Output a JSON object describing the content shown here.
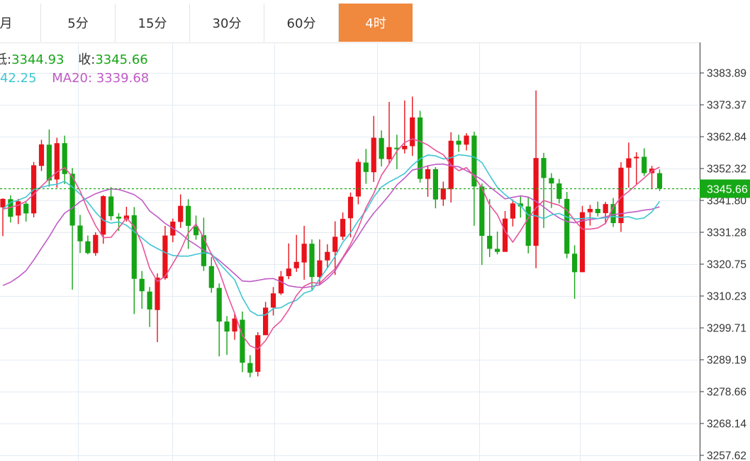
{
  "tabs": [
    {
      "label": "月",
      "active": false
    },
    {
      "label": "5分",
      "active": false
    },
    {
      "label": "15分",
      "active": false
    },
    {
      "label": "30分",
      "active": false
    },
    {
      "label": "60分",
      "active": false
    },
    {
      "label": "4时",
      "active": true
    }
  ],
  "info": {
    "low_label": "低:",
    "low_value": "3344.93",
    "close_label": "收:",
    "close_value": "3345.66",
    "ma10_value": "42.25",
    "ma20_label": "MA20:",
    "ma20_value": "3339.68"
  },
  "colors": {
    "tab_active_bg": "#f0883e",
    "up": "#e8121b",
    "down": "#15a415",
    "ma_cyan": "#3fc6d3",
    "ma_pink": "#e8559a",
    "ma_magenta": "#c05bc6",
    "last_price_tag": "#16a816"
  },
  "chart_data": {
    "type": "candlestick",
    "y_axis": {
      "position": "right",
      "ylim": [
        3257.62,
        3390
      ],
      "tick_labels": [
        "3383.89",
        "3373.37",
        "3362.84",
        "3352.32",
        "3341.80",
        "3331.28",
        "3320.75",
        "3310.23",
        "3299.71",
        "3289.19",
        "3278.66",
        "3268.14",
        "3257.62"
      ],
      "tick_values": [
        3383.89,
        3373.37,
        3362.84,
        3352.32,
        3341.8,
        3331.28,
        3320.75,
        3310.23,
        3299.71,
        3289.19,
        3278.66,
        3268.14,
        3257.62
      ]
    },
    "grid": true,
    "last_price": {
      "value": 3345.66,
      "label": "3345.66"
    },
    "candles": [
      [
        3339.5,
        3342.3,
        3342.5,
        3330.0
      ],
      [
        3342.2,
        3336.4,
        3343.5,
        3334.5
      ],
      [
        3336.8,
        3341.5,
        3342.3,
        3334.0
      ],
      [
        3340.7,
        3337.5,
        3341.3,
        3334.8
      ],
      [
        3337.5,
        3353.4,
        3354.5,
        3336.2
      ],
      [
        3353.2,
        3360.3,
        3361.8,
        3351.5
      ],
      [
        3360.2,
        3348.4,
        3365.2,
        3346.3
      ],
      [
        3348.7,
        3360.7,
        3362.5,
        3346.0
      ],
      [
        3360.7,
        3350.5,
        3363.2,
        3347.2
      ],
      [
        3350.6,
        3333.5,
        3352.5,
        3312.3
      ],
      [
        3333.5,
        3328.3,
        3337.0,
        3324.4
      ],
      [
        3328.3,
        3324.4,
        3330.2,
        3324.0
      ],
      [
        3324.4,
        3330.4,
        3331.3,
        3323.5
      ],
      [
        3330.5,
        3343.2,
        3343.5,
        3327.5
      ],
      [
        3343.1,
        3336.6,
        3346.2,
        3335.2
      ],
      [
        3336.4,
        3335.8,
        3337.6,
        3331.7
      ],
      [
        3335.6,
        3336.8,
        3339.7,
        3334.8
      ],
      [
        3336.9,
        3315.9,
        3339.6,
        3304.3
      ],
      [
        3315.9,
        3311.8,
        3318.5,
        3306.0
      ],
      [
        3311.7,
        3305.8,
        3313.2,
        3300.0
      ],
      [
        3305.6,
        3316.3,
        3317.7,
        3295.0
      ],
      [
        3316.1,
        3330.2,
        3333.4,
        3315.6
      ],
      [
        3330.2,
        3334.8,
        3335.8,
        3328.0
      ],
      [
        3334.7,
        3340.0,
        3343.8,
        3332.7
      ],
      [
        3340.0,
        3333.4,
        3342.2,
        3325.8
      ],
      [
        3333.2,
        3330.3,
        3336.8,
        3328.8
      ],
      [
        3330.3,
        3320.1,
        3336.1,
        3318.5
      ],
      [
        3320.1,
        3312.9,
        3323.1,
        3311.3
      ],
      [
        3312.9,
        3301.8,
        3314.4,
        3290.3
      ],
      [
        3301.8,
        3298.5,
        3303.6,
        3290.8
      ],
      [
        3298.5,
        3302.8,
        3304.3,
        3295.8
      ],
      [
        3302.4,
        3288.2,
        3305.1,
        3285.1
      ],
      [
        3288.1,
        3284.9,
        3290.7,
        3283.4
      ],
      [
        3285.2,
        3297.3,
        3298.3,
        3283.7
      ],
      [
        3297.3,
        3306.4,
        3308.3,
        3297.3
      ],
      [
        3306.4,
        3311.1,
        3313.2,
        3303.8
      ],
      [
        3311.1,
        3316.7,
        3318.5,
        3310.6
      ],
      [
        3316.8,
        3319.3,
        3327.6,
        3315.8
      ],
      [
        3319.4,
        3321.5,
        3330.4,
        3318.2
      ],
      [
        3321.3,
        3327.5,
        3333.4,
        3315.6
      ],
      [
        3327.5,
        3316.5,
        3328.9,
        3312.3
      ],
      [
        3316.5,
        3322.0,
        3328.9,
        3314.1
      ],
      [
        3322.0,
        3324.8,
        3327.3,
        3319.3
      ],
      [
        3324.8,
        3329.8,
        3334.9,
        3317.2
      ],
      [
        3329.8,
        3335.7,
        3337.8,
        3328.7
      ],
      [
        3335.9,
        3343.0,
        3344.4,
        3329.6
      ],
      [
        3343.1,
        3354.5,
        3355.5,
        3340.5
      ],
      [
        3354.3,
        3351.2,
        3358.8,
        3347.3
      ],
      [
        3351.1,
        3362.5,
        3369.7,
        3347.9
      ],
      [
        3362.4,
        3355.5,
        3364.9,
        3353.0
      ],
      [
        3355.4,
        3359.4,
        3374.3,
        3353.8
      ],
      [
        3359.2,
        3358.7,
        3363.5,
        3352.1
      ],
      [
        3358.7,
        3359.8,
        3374.8,
        3357.3
      ],
      [
        3359.7,
        3369.2,
        3376.1,
        3356.5
      ],
      [
        3369.2,
        3348.9,
        3371.4,
        3347.7
      ],
      [
        3348.9,
        3352.1,
        3353.4,
        3343.0
      ],
      [
        3352.1,
        3342.1,
        3352.8,
        3339.2
      ],
      [
        3342.1,
        3345.8,
        3348.0,
        3340.0
      ],
      [
        3345.5,
        3361.5,
        3364.3,
        3341.1
      ],
      [
        3361.5,
        3360.2,
        3363.5,
        3357.8
      ],
      [
        3360.2,
        3363.2,
        3364.0,
        3358.3
      ],
      [
        3363.2,
        3346.4,
        3364.5,
        3333.4
      ],
      [
        3346.4,
        3330.1,
        3347.4,
        3320.5
      ],
      [
        3330.1,
        3325.8,
        3342.2,
        3323.1
      ],
      [
        3325.8,
        3324.8,
        3331.5,
        3324.0
      ],
      [
        3324.8,
        3335.8,
        3338.3,
        3325.5
      ],
      [
        3335.8,
        3340.8,
        3342.1,
        3333.2
      ],
      [
        3340.8,
        3339.8,
        3343.3,
        3336.1
      ],
      [
        3339.8,
        3326.8,
        3343.0,
        3324.3
      ],
      [
        3326.8,
        3355.8,
        3378.1,
        3319.4
      ],
      [
        3355.8,
        3349.2,
        3357.5,
        3332.7
      ],
      [
        3349.2,
        3347.4,
        3350.8,
        3339.3
      ],
      [
        3347.4,
        3342.3,
        3348.9,
        3340.8
      ],
      [
        3342.3,
        3324.2,
        3344.6,
        3322.7
      ],
      [
        3324.2,
        3318.1,
        3327.0,
        3309.3
      ],
      [
        3318.1,
        3337.9,
        3340.0,
        3318.1
      ],
      [
        3337.9,
        3339.0,
        3340.3,
        3333.5
      ],
      [
        3339.0,
        3337.6,
        3341.4,
        3336.5
      ],
      [
        3337.6,
        3340.6,
        3341.3,
        3334.0
      ],
      [
        3340.6,
        3334.3,
        3342.6,
        3333.0
      ],
      [
        3334.3,
        3352.6,
        3354.4,
        3331.4
      ],
      [
        3352.6,
        3355.7,
        3360.9,
        3346.0
      ],
      [
        3355.7,
        3356.2,
        3357.7,
        3347.0
      ],
      [
        3356.2,
        3350.8,
        3359.0,
        3349.9
      ],
      [
        3350.8,
        3352.3,
        3353.2,
        3345.7
      ],
      [
        3350.8,
        3345.7,
        3352.0,
        3344.9
      ]
    ],
    "ma_cyan": [
      3339.0,
      3341.2,
      3341.9,
      3342.9,
      3345.4,
      3346.1,
      3346.8,
      3347.1,
      3348.1,
      3346.2,
      3343.9,
      3341.2,
      3337.9,
      3335.2,
      3334.3,
      3334.7,
      3333.6,
      3331.5,
      3329.4,
      3327.3,
      3325.9,
      3324.6,
      3323.6,
      3323.4,
      3323.4,
      3324.0,
      3324.5,
      3324.2,
      3321.1,
      3318.3,
      3315.6,
      3309.7,
      3305.3,
      3303.8,
      3304.0,
      3306.1,
      3306.4,
      3307.9,
      3308.8,
      3311.2,
      3312.0,
      3315.9,
      3319.5,
      3323.3,
      3328.0,
      3331.1,
      3335.1,
      3338.4,
      3342.9,
      3346.2,
      3347.9,
      3349.2,
      3350.7,
      3353.4,
      3355.5,
      3356.8,
      3356.5,
      3355.5,
      3355.9,
      3356.9,
      3356.6,
      3356.1,
      3354.3,
      3350.1,
      3346.1,
      3343.7,
      3341.7,
      3340.1,
      3337.0,
      3336.7,
      3335.8,
      3337.0,
      3337.5,
      3336.3,
      3335.7,
      3335.8,
      3336.1,
      3335.8,
      3336.1,
      3336.5,
      3336.2,
      3336.4,
      3335.6,
      3336.0,
      3338.0,
      3341.5
    ],
    "ma_pink": [
      3338.9,
      3339.5,
      3340.2,
      3341.5,
      3343.8,
      3346.5,
      3348.9,
      3351.2,
      3352.6,
      3349.6,
      3344.9,
      3338.7,
      3333.5,
      3329.5,
      3329.6,
      3332.7,
      3336.0,
      3333.2,
      3327.5,
      3319.4,
      3315.0,
      3316.7,
      3320.9,
      3325.3,
      3331.1,
      3334.0,
      3329.4,
      3324.0,
      3318.5,
      3311.1,
      3304.5,
      3297.2,
      3293.8,
      3292.7,
      3295.5,
      3299.7,
      3302.0,
      3305.7,
      3310.4,
      3313.5,
      3314.7,
      3314.4,
      3316.9,
      3319.2,
      3323.0,
      3327.3,
      3332.7,
      3339.4,
      3344.1,
      3350.1,
      3353.9,
      3358.1,
      3360.9,
      3362.1,
      3361.3,
      3360.1,
      3358.3,
      3356.9,
      3353.6,
      3351.6,
      3352.6,
      3349.8,
      3345.9,
      3340.3,
      3337.1,
      3331.6,
      3328.0,
      3331.8,
      3335.9,
      3339.3,
      3341.8,
      3340.9,
      3340.2,
      3338.6,
      3335.2,
      3332.3,
      3332.3,
      3332.7,
      3334.2,
      3339.6,
      3342.8,
      3344.8,
      3347.0,
      3349.2,
      3351.5,
      3352.8
    ],
    "ma_magenta": [
      3313.7,
      3314.8,
      3316.5,
      3318.6,
      3322.1,
      3326.0,
      3329.8,
      3334.1,
      3337.6,
      3339.3,
      3341.4,
      3342.7,
      3344.0,
      3344.9,
      3345.6,
      3345.4,
      3344.6,
      3343.7,
      3341.9,
      3338.3,
      3336.4,
      3334.2,
      3332.6,
      3330.9,
      3328.7,
      3327.1,
      3325.3,
      3323.9,
      3322.0,
      3319.8,
      3317.5,
      3315.2,
      3315.0,
      3315.4,
      3315.9,
      3316.0,
      3314.9,
      3313.6,
      3313.2,
      3313.0,
      3313.4,
      3313.9,
      3315.9,
      3318.5,
      3322.7,
      3326.4,
      3330.1,
      3334.1,
      3337.6,
      3340.5,
      3343.5,
      3346.9,
      3349.2,
      3351.8,
      3352.4,
      3353.2,
      3353.7,
      3353.8,
      3353.2,
      3352.9,
      3351.6,
      3350.2,
      3348.6,
      3346.3,
      3344.3,
      3342.3,
      3342.8,
      3343.3,
      3342.9,
      3341.5,
      3339.6,
      3337.7,
      3336.0,
      3334.8,
      3334.4,
      3335.1,
      3335.5,
      3335.8,
      3336.4,
      3337.1,
      3337.4,
      3337.8,
      3338.1,
      3338.6,
      3338.9,
      3339.7
    ]
  }
}
